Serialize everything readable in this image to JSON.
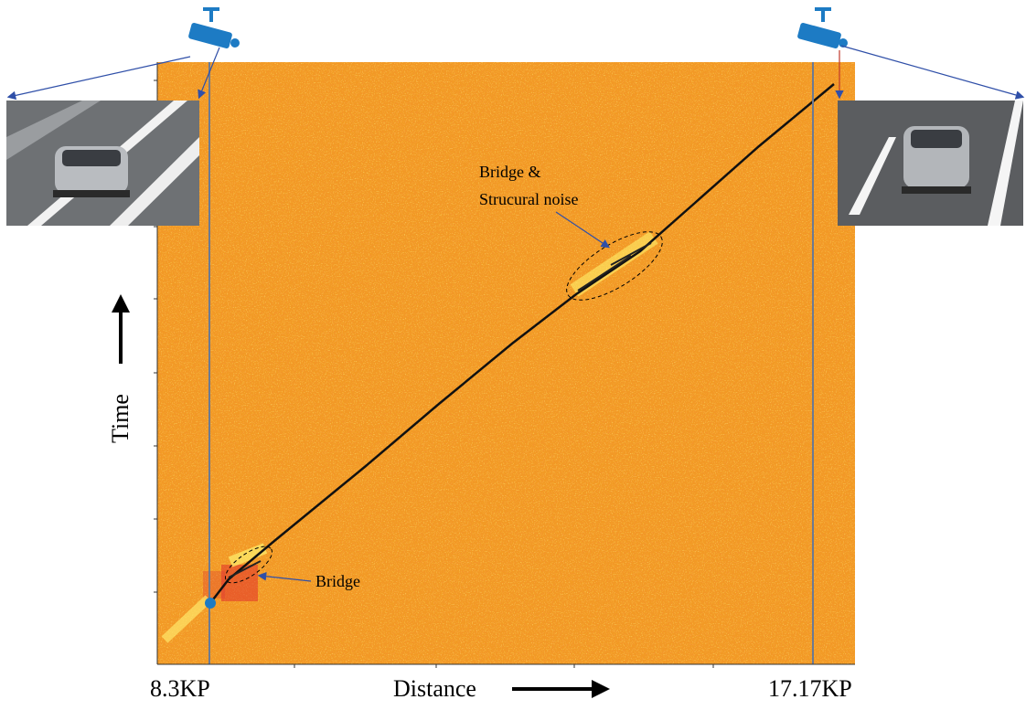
{
  "axis_labels": {
    "x_start": "8.3KP",
    "x_title": "Distance",
    "x_end": "17.17KP",
    "y_title": "Time"
  },
  "annotations": {
    "upper": [
      "Bridge &",
      "Strucural noise"
    ],
    "lower": "Bridge"
  }
}
